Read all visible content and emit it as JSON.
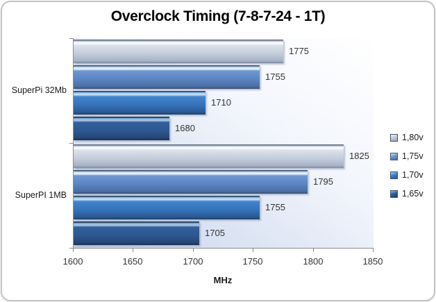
{
  "chart_data": {
    "type": "bar",
    "orientation": "horizontal",
    "title": "Overclock Timing (7-8-7-24 - 1T)",
    "xlabel": "MHz",
    "ylabel": "",
    "xlim": [
      1600,
      1850
    ],
    "xticks": [
      1600,
      1650,
      1700,
      1750,
      1800,
      1850
    ],
    "categories": [
      "SuperPi 32Mb",
      "SuperPI 1MB"
    ],
    "series": [
      {
        "name": "1,80v",
        "color": "#c3cddd",
        "values": [
          1775,
          1825
        ]
      },
      {
        "name": "1,75v",
        "color": "#6f97d2",
        "values": [
          1755,
          1795
        ]
      },
      {
        "name": "1,70v",
        "color": "#3f82cb",
        "values": [
          1710,
          1755
        ]
      },
      {
        "name": "1,65v",
        "color": "#30619e",
        "values": [
          1680,
          1705
        ]
      }
    ],
    "legend_position": "right",
    "legend_entries": [
      "1,80v",
      "1,75v",
      "1,70v",
      "1,65v"
    ],
    "grid": false,
    "bar_value_labels": [
      1775,
      1755,
      1710,
      1680,
      1825,
      1795,
      1755,
      1705
    ],
    "series_draw_order_top_to_bottom": [
      "1,80v",
      "1,75v",
      "1,70v",
      "1,65v"
    ]
  }
}
